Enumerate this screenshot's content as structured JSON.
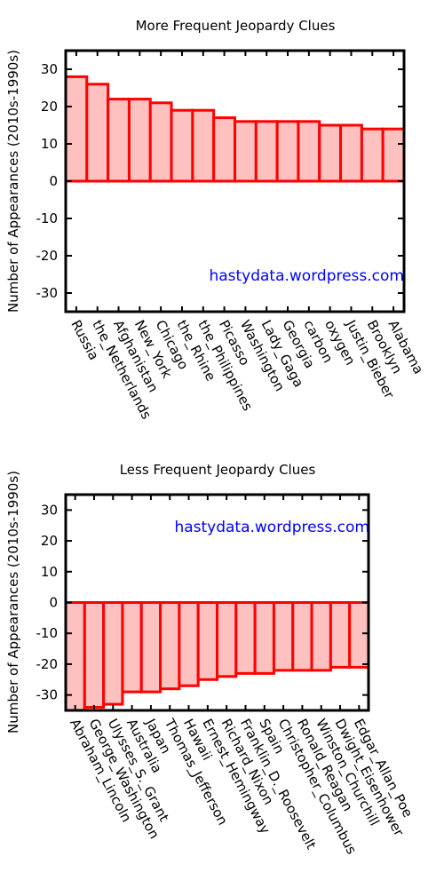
{
  "colors": {
    "bar_fill": "#ffc0c0",
    "bar_stroke": "#ff0000",
    "axis": "#000000",
    "watermark": "#0000ff"
  },
  "chart_data": [
    {
      "type": "bar",
      "title": "More Frequent Jeopardy Clues",
      "ylabel": "Number of Appearances (2010s-1990s)",
      "watermark": "hastydata.wordpress.com",
      "watermark_position": "bottom-right",
      "ylim": [
        -35,
        35
      ],
      "yticks": [
        30,
        20,
        10,
        0,
        -10,
        -20,
        -30
      ],
      "grid": false,
      "categories": [
        "Russia",
        "the_Netherlands",
        "Afghanistan",
        "New_York",
        "Chicago",
        "the_Rhine",
        "the_Philippines",
        "Picasso",
        "Washington",
        "Lady_Gaga",
        "Georgia",
        "carbon",
        "oxygen",
        "Justin_Bieber",
        "Brooklyn",
        "Alabama"
      ],
      "values": [
        28,
        26,
        22,
        22,
        21,
        19,
        19,
        17,
        16,
        16,
        16,
        16,
        15,
        15,
        14,
        14
      ]
    },
    {
      "type": "bar",
      "title": "Less Frequent Jeopardy Clues",
      "ylabel": "Number of Appearances (2010s-1990s)",
      "watermark": "hastydata.wordpress.com",
      "watermark_position": "top-right",
      "ylim": [
        -35,
        35
      ],
      "yticks": [
        30,
        20,
        10,
        0,
        -10,
        -20,
        -30
      ],
      "grid": false,
      "categories": [
        "Abraham_Lincoln",
        "George_Washington",
        "Ulysses_S._Grant",
        "Australia",
        "Japan",
        "Thomas_Jefferson",
        "Hawaii",
        "Ernest_Hemingway",
        "Richard_Nixon",
        "Franklin_D._Roosevelt",
        "Spain",
        "Christopher_Columbus",
        "Ronald_Reagan",
        "Winston_Churchill",
        "Dwight_Eisenhower",
        "Edgar_Allan_Poe"
      ],
      "values": [
        -35,
        -34,
        -33,
        -29,
        -29,
        -28,
        -27,
        -25,
        -24,
        -23,
        -23,
        -22,
        -22,
        -22,
        -21,
        -21
      ]
    }
  ]
}
